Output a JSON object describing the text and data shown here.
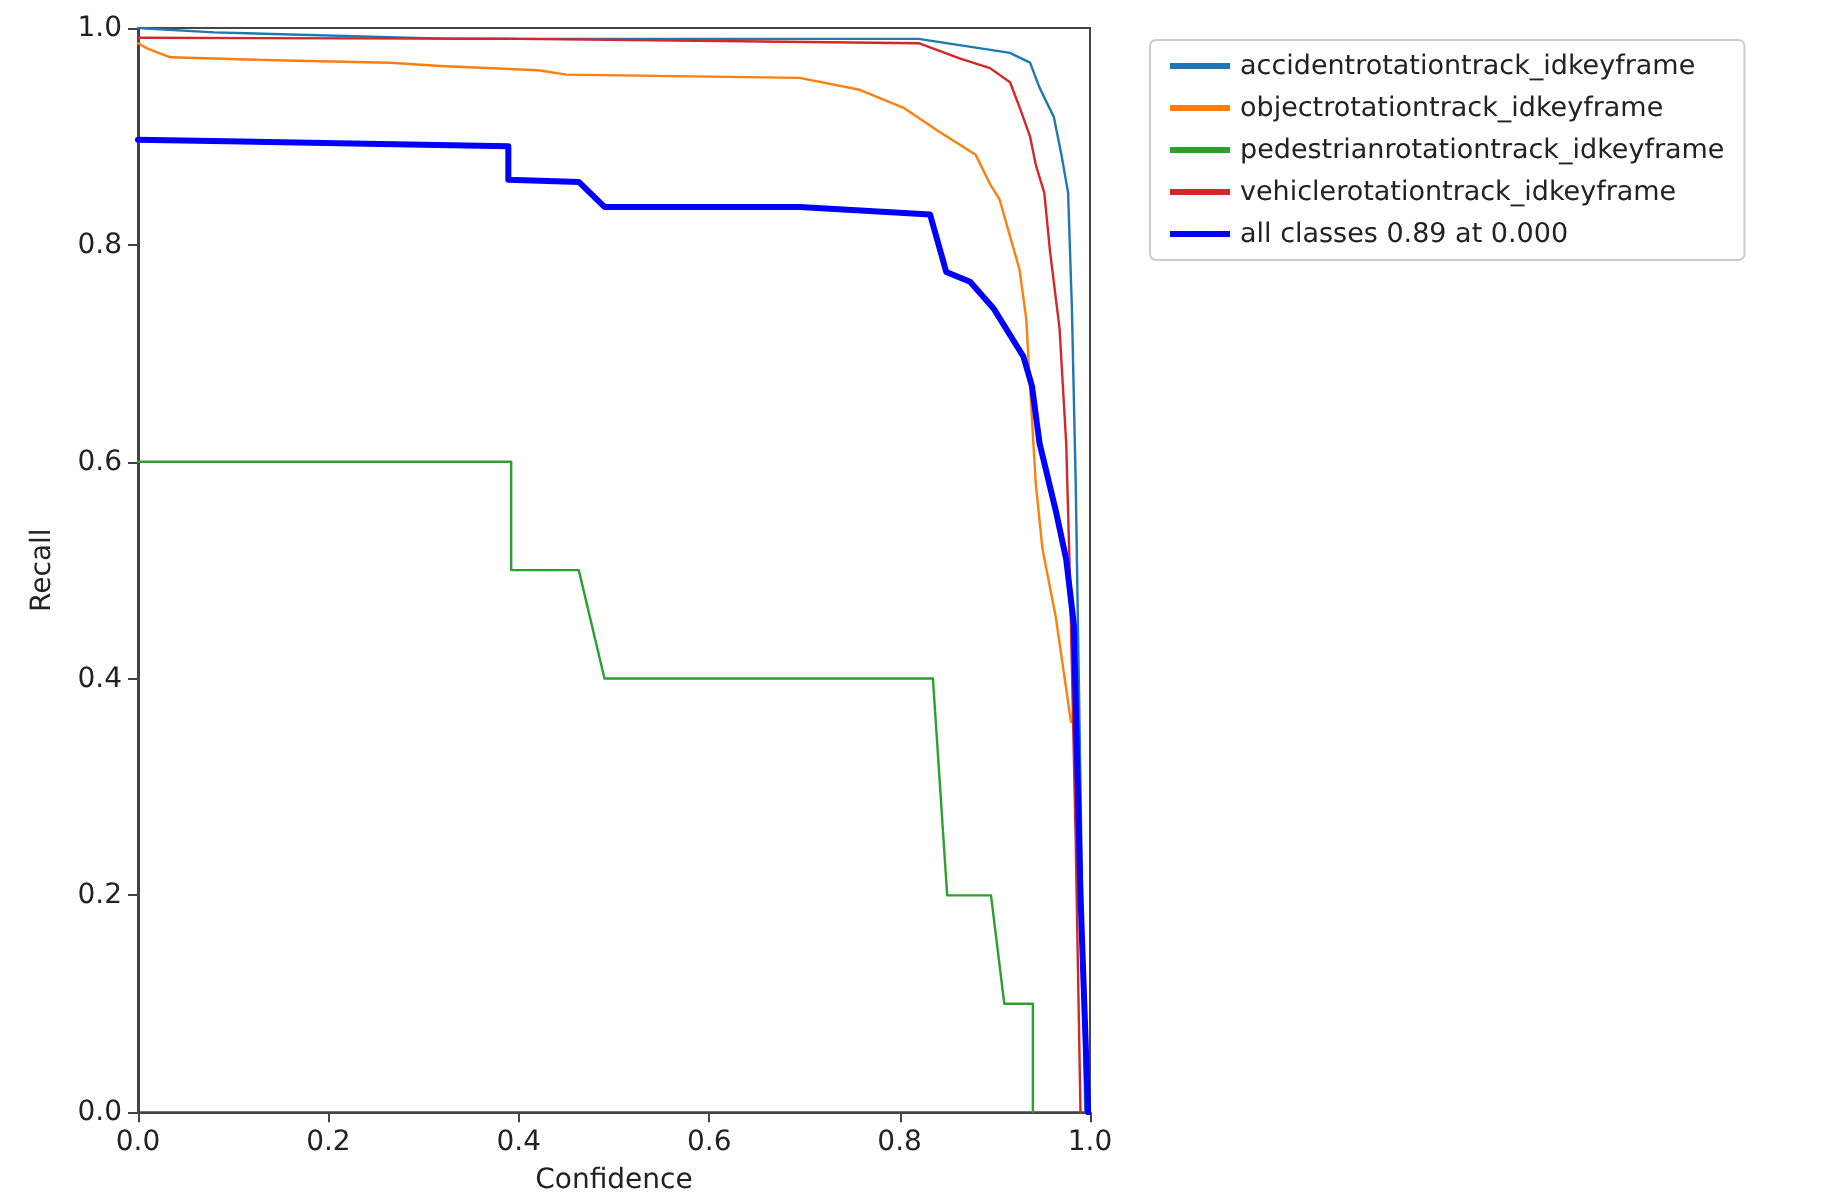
{
  "chart_data": {
    "type": "line",
    "xlabel": "Confidence",
    "ylabel": "Recall",
    "xlim": [
      0,
      1
    ],
    "ylim": [
      0,
      1
    ],
    "xticks": [
      {
        "value": 0,
        "label": "0.0"
      },
      {
        "value": 0.2,
        "label": "0.2"
      },
      {
        "value": 0.4,
        "label": "0.4"
      },
      {
        "value": 0.6,
        "label": "0.6"
      },
      {
        "value": 0.8,
        "label": "0.8"
      },
      {
        "value": 1,
        "label": "1.0"
      }
    ],
    "yticks": [
      {
        "value": 0,
        "label": "0.0"
      },
      {
        "value": 0.2,
        "label": "0.2"
      },
      {
        "value": 0.4,
        "label": "0.4"
      },
      {
        "value": 0.6,
        "label": "0.6"
      },
      {
        "value": 0.8,
        "label": "0.8"
      },
      {
        "value": 1,
        "label": "1.0"
      }
    ],
    "grid": false,
    "legend": "top right",
    "marker": "none",
    "line_style": "solid",
    "series": [
      {
        "name": "accidentrotationtrack_idkeyframe",
        "color": "#1f77b4",
        "x": [
          0,
          0.08,
          0.33,
          0.6,
          0.82,
          0.916,
          0.937,
          0.947,
          0.962,
          0.97,
          0.977,
          0.981,
          0.985,
          0.99,
          0.995
        ],
        "values": [
          1,
          0.996,
          0.99,
          0.99,
          0.99,
          0.977,
          0.968,
          0.945,
          0.918,
          0.883,
          0.848,
          0.741,
          0.58,
          0.3,
          0
        ]
      },
      {
        "name": "objectrotationtrack_idkeyframe",
        "color": "#ff7f0e",
        "x": [
          0,
          0.01,
          0.034,
          0.155,
          0.265,
          0.317,
          0.42,
          0.45,
          0.695,
          0.758,
          0.805,
          0.842,
          0.88,
          0.895,
          0.905,
          0.926,
          0.933,
          0.937,
          0.943,
          0.95,
          0.964,
          0.98
        ],
        "values": [
          0.986,
          0.981,
          0.973,
          0.97,
          0.968,
          0.965,
          0.961,
          0.957,
          0.954,
          0.943,
          0.926,
          0.904,
          0.883,
          0.856,
          0.842,
          0.777,
          0.732,
          0.67,
          0.58,
          0.52,
          0.457,
          0.36
        ]
      },
      {
        "name": "pedestrianrotationtrack_idkeyframe",
        "color": "#2ca02c",
        "x": [
          0,
          0.392,
          0.392,
          0.463,
          0.49,
          0.835,
          0.85,
          0.896,
          0.91,
          0.94,
          0.94
        ],
        "values": [
          0.6,
          0.6,
          0.5,
          0.5,
          0.4,
          0.4,
          0.2,
          0.2,
          0.1,
          0.1,
          0
        ]
      },
      {
        "name": "vehiclerotationtrack_idkeyframe",
        "color": "#d62728",
        "x": [
          0,
          0.4,
          0.82,
          0.863,
          0.895,
          0.916,
          0.926,
          0.937,
          0.943,
          0.952,
          0.958,
          0.968,
          0.975,
          0.979,
          0.985,
          0.99
        ],
        "values": [
          0.991,
          0.99,
          0.986,
          0.972,
          0.963,
          0.95,
          0.927,
          0.9,
          0.874,
          0.848,
          0.794,
          0.723,
          0.617,
          0.49,
          0.25,
          0
        ]
      },
      {
        "name": "all classes 0.89 at 0.000",
        "color": "#0000ff",
        "x": [
          0,
          0.389,
          0.389,
          0.463,
          0.49,
          0.695,
          0.832,
          0.849,
          0.874,
          0.899,
          0.93,
          0.939,
          0.947,
          0.964,
          0.975,
          0.983,
          0.99,
          0.998
        ],
        "values": [
          0.897,
          0.891,
          0.86,
          0.858,
          0.835,
          0.835,
          0.828,
          0.775,
          0.766,
          0.741,
          0.697,
          0.67,
          0.617,
          0.555,
          0.51,
          0.45,
          0.2,
          0
        ]
      }
    ]
  }
}
